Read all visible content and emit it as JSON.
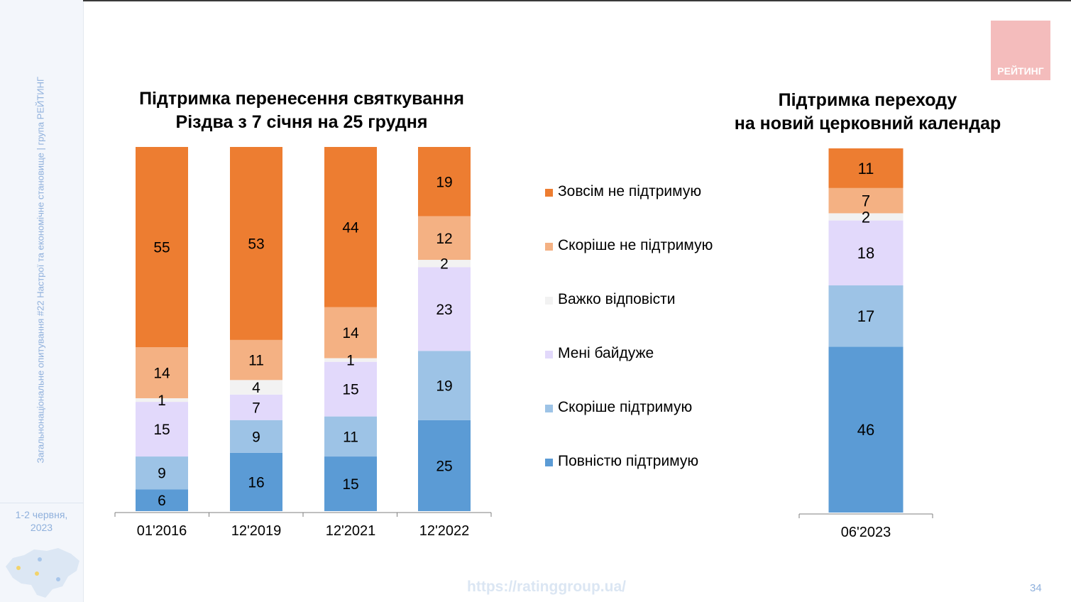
{
  "sidebar": {
    "vertical_text": "Загальнонаціональне опитування #22 Настрої та економічне становище | група РЕЙТИНГ",
    "date_line1": "1-2 червня,",
    "date_line2": "2023"
  },
  "logo": {
    "text": "РЕЙТИНГ"
  },
  "footer": {
    "url": "https://ratinggroup.ua/",
    "page_number": "34"
  },
  "legend": {
    "items": [
      {
        "label": "Зовсім не підтримую",
        "color": "#ED7D31"
      },
      {
        "label": "Скоріше  не підтримую",
        "color": "#F4B183"
      },
      {
        "label": "Важко відповісти",
        "color": "#F2F2F2"
      },
      {
        "label": "Мені байдуже",
        "color": "#E2D9FB"
      },
      {
        "label": "Скоріше  підтримую",
        "color": "#9DC3E6"
      },
      {
        "label": "Повністю підтримую",
        "color": "#5B9BD5"
      }
    ]
  },
  "chart_data": [
    {
      "type": "bar",
      "stacked": true,
      "title_line1": "Підтримка перенесення святкування",
      "title_line2": "Різдва з 7 січня на 25 грудня",
      "categories": [
        "01'2016",
        "12'2019",
        "12'2021",
        "12'2022"
      ],
      "series": [
        {
          "name": "Повністю підтримую",
          "color": "#5B9BD5",
          "values": [
            6,
            16,
            15,
            25
          ]
        },
        {
          "name": "Скоріше  підтримую",
          "color": "#9DC3E6",
          "values": [
            9,
            9,
            11,
            19
          ]
        },
        {
          "name": "Мені байдуже",
          "color": "#E2D9FB",
          "values": [
            15,
            7,
            15,
            23
          ]
        },
        {
          "name": "Важко відповісти",
          "color": "#F2F2F2",
          "values": [
            1,
            4,
            1,
            2
          ]
        },
        {
          "name": "Скоріше  не підтримую",
          "color": "#F4B183",
          "values": [
            14,
            11,
            14,
            12
          ]
        },
        {
          "name": "Зовсім не підтримую",
          "color": "#ED7D31",
          "values": [
            55,
            53,
            44,
            19
          ]
        }
      ]
    },
    {
      "type": "bar",
      "stacked": true,
      "title_line1": "Підтримка переходу",
      "title_line2": "на новий церковний календар",
      "categories": [
        "06'2023"
      ],
      "series": [
        {
          "name": "Повністю підтримую",
          "color": "#5B9BD5",
          "values": [
            46
          ]
        },
        {
          "name": "Скоріше  підтримую",
          "color": "#9DC3E6",
          "values": [
            17
          ]
        },
        {
          "name": "Мені байдуже",
          "color": "#E2D9FB",
          "values": [
            18
          ]
        },
        {
          "name": "Важко відповісти",
          "color": "#F2F2F2",
          "values": [
            2
          ]
        },
        {
          "name": "Скоріше  не підтримую",
          "color": "#F4B183",
          "values": [
            7
          ]
        },
        {
          "name": "Зовсім не підтримую",
          "color": "#ED7D31",
          "values": [
            11
          ]
        }
      ]
    }
  ]
}
